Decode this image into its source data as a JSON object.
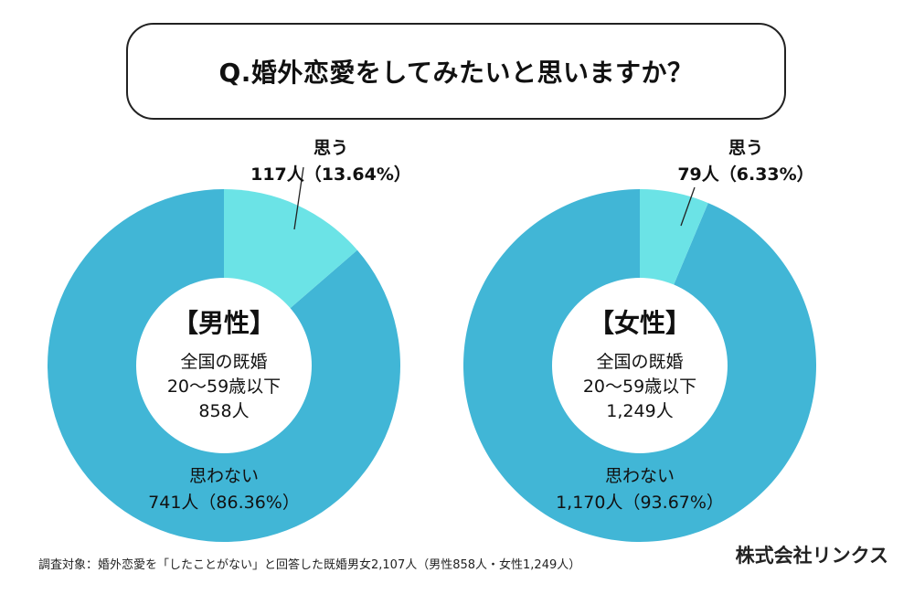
{
  "title": "Q.婚外恋愛をしてみたいと思いますか？",
  "colors": {
    "yes": "#6be3e6",
    "no": "#41b6d6",
    "hole": "#ffffff"
  },
  "chart_data": [
    {
      "type": "pie",
      "donut": true,
      "group": "【男性】",
      "center_lines": [
        "全国の既婚",
        "20〜59歳以下",
        "858人"
      ],
      "slices": [
        {
          "name": "思う",
          "label_line2": "117人（13.64%）",
          "count": 117,
          "percent": 13.64
        },
        {
          "name": "思わない",
          "label_line2": "741人（86.36%）",
          "count": 741,
          "percent": 86.36
        }
      ]
    },
    {
      "type": "pie",
      "donut": true,
      "group": "【女性】",
      "center_lines": [
        "全国の既婚",
        "20〜59歳以下",
        "1,249人"
      ],
      "slices": [
        {
          "name": "思う",
          "label_line2": "79人（6.33%）",
          "count": 79,
          "percent": 6.33
        },
        {
          "name": "思わない",
          "label_line2": "1,170人（93.67%）",
          "count": 1170,
          "percent": 93.67
        }
      ]
    }
  ],
  "footnote": "調査対象：婚外恋愛を「したことがない」と回答した既婚男女2,107人（男性858人・女性1,249人）",
  "company": "株式会社リンクス"
}
